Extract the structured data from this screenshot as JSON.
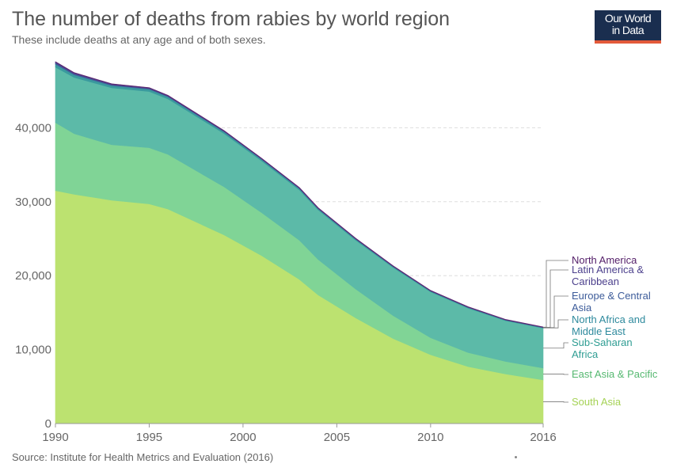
{
  "header": {
    "title": "The number of deaths from rabies by world region",
    "subtitle": "These include deaths at any age and of both sexes."
  },
  "logo": {
    "line1": "Our World",
    "line2": "in Data"
  },
  "footer": {
    "source": "Source: Institute for Health Metrics and Evaluation (2016)"
  },
  "chart_data": {
    "type": "area",
    "stacked": true,
    "title": "The number of deaths from rabies by world region",
    "subtitle": "These include deaths at any age and of both sexes.",
    "xlabel": "",
    "ylabel": "",
    "x": [
      1990,
      1991,
      1993,
      1995,
      1996,
      1999,
      2001,
      2003,
      2004,
      2006,
      2008,
      2010,
      2012,
      2014,
      2016
    ],
    "xlim": [
      1990,
      2016
    ],
    "ylim": [
      0,
      50000
    ],
    "x_ticks": [
      1990,
      1995,
      2000,
      2005,
      2010,
      2016
    ],
    "y_ticks": [
      0,
      10000,
      20000,
      30000,
      40000
    ],
    "y_tick_labels": [
      "0",
      "10,000",
      "20,000",
      "30,000",
      "40,000"
    ],
    "grid": "horizontal dashed",
    "legend_placement": "right, labels at series end",
    "series": [
      {
        "name": "South Asia",
        "color": "#bce270",
        "label_color": "#a5d255",
        "values": [
          31500,
          31000,
          30200,
          29700,
          29000,
          25500,
          22700,
          19500,
          17400,
          14300,
          11500,
          9300,
          7700,
          6700,
          5900
        ]
      },
      {
        "name": "East Asia & Pacific",
        "color": "#80d496",
        "label_color": "#55b870",
        "values": [
          9200,
          8200,
          7500,
          7600,
          7400,
          6500,
          5800,
          5300,
          4800,
          3900,
          3100,
          2300,
          1900,
          1700,
          1600
        ]
      },
      {
        "name": "Sub-Saharan Africa",
        "color": "#5cbaa8",
        "label_color": "#2f9d93",
        "values": [
          7500,
          7600,
          7700,
          7600,
          7500,
          7200,
          7000,
          6800,
          6700,
          6600,
          6500,
          6200,
          6000,
          5500,
          5400
        ]
      },
      {
        "name": "North Africa and Middle East",
        "color": "#3a9a9e",
        "label_color": "#2e8a9d",
        "values": [
          400,
          350,
          300,
          300,
          280,
          230,
          200,
          180,
          160,
          140,
          120,
          100,
          90,
          80,
          70
        ]
      },
      {
        "name": "Europe & Central Asia",
        "color": "#3f6b9c",
        "label_color": "#3d5c9a",
        "values": [
          100,
          90,
          80,
          80,
          70,
          60,
          55,
          50,
          45,
          40,
          35,
          30,
          30,
          25,
          25
        ]
      },
      {
        "name": "Latin America & Caribbean",
        "color": "#4a4a95",
        "label_color": "#4b3f8c",
        "values": [
          200,
          170,
          120,
          100,
          90,
          70,
          60,
          50,
          45,
          40,
          35,
          30,
          30,
          25,
          25
        ]
      },
      {
        "name": "North America",
        "color": "#5b2872",
        "label_color": "#55206a",
        "values": [
          20,
          20,
          20,
          20,
          20,
          20,
          20,
          20,
          20,
          20,
          20,
          20,
          20,
          20,
          20
        ]
      }
    ],
    "legend_labels": [
      {
        "series": "North America",
        "lines": [
          "North America"
        ]
      },
      {
        "series": "Latin America & Caribbean",
        "lines": [
          "Latin America &",
          "Caribbean"
        ]
      },
      {
        "series": "Europe & Central Asia",
        "lines": [
          "Europe & Central",
          "Asia"
        ]
      },
      {
        "series": "North Africa and Middle East",
        "lines": [
          "North Africa and",
          "Middle East"
        ]
      },
      {
        "series": "Sub-Saharan Africa",
        "lines": [
          "Sub-Saharan",
          "Africa"
        ]
      },
      {
        "series": "East Asia & Pacific",
        "lines": [
          "East Asia & Pacific"
        ]
      },
      {
        "series": "South Asia",
        "lines": [
          "South Asia"
        ]
      }
    ]
  }
}
